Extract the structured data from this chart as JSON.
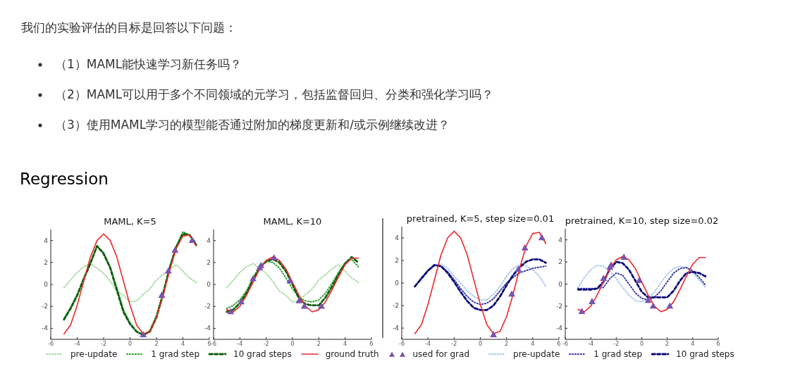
{
  "chart_data": [
    {
      "type": "line",
      "title": "MAML, K=5",
      "annotations": [
        "我们的实验评估的目标是回答以下问题：",
        "（1）MAML能快速学习新任务吗？",
        "（2）MAML可以用于多个不同领域的元学习，包括监督回归、分类和强化学习吗？",
        "（3）使用MAML学习的模型能否通过附加的梯度更新和/或示例继续改进？",
        "Regression"
      ],
      "x": [
        -5,
        -4.5,
        -4,
        -3.5,
        -3,
        -2.5,
        -2,
        -1.5,
        -1,
        -0.5,
        0,
        0.5,
        1,
        1.5,
        2,
        2.5,
        3,
        3.5,
        4,
        4.5,
        5
      ],
      "xlim": [
        -6,
        6
      ],
      "xticks": [
        -6,
        -4,
        -2,
        0,
        2,
        4,
        6
      ],
      "ylim": [
        -5,
        5
      ],
      "yticks": [
        -4,
        -2,
        0,
        2,
        4
      ],
      "legend": "bottom",
      "series": [
        {
          "name": "pre-update",
          "color": "#a6dba0",
          "line_style": "dotted",
          "values": [
            -0.3,
            0.4,
            1.1,
            1.6,
            1.9,
            1.5,
            1.0,
            0.3,
            -0.6,
            -1.0,
            -1.6,
            -1.5,
            -0.9,
            -0.4,
            0.4,
            0.9,
            1.4,
            1.8,
            1.2,
            0.6,
            0.2
          ]
        },
        {
          "name": "1 grad step",
          "color": "#2ca02c",
          "line_style": "dotted",
          "values": [
            -3.1,
            -2.1,
            -0.9,
            0.6,
            2.0,
            3.5,
            2.9,
            1.6,
            -0.3,
            -2.3,
            -3.5,
            -4.3,
            -4.6,
            -4.2,
            -2.8,
            -0.7,
            1.6,
            3.5,
            4.8,
            4.5,
            3.8
          ]
        },
        {
          "name": "10 grad steps",
          "color": "#0b5d0b",
          "line_style": "dashed",
          "values": [
            -3.2,
            -2.2,
            -1.0,
            0.5,
            1.9,
            3.5,
            2.8,
            1.5,
            -0.5,
            -2.5,
            -3.6,
            -4.3,
            -4.6,
            -4.3,
            -3.0,
            -0.9,
            1.5,
            3.4,
            4.6,
            4.5,
            3.6
          ]
        },
        {
          "name": "ground truth",
          "color": "#e8292b",
          "line_style": "solid",
          "values": [
            -4.5,
            -3.7,
            -1.9,
            0.3,
            2.5,
            4.0,
            4.6,
            4.0,
            2.5,
            0.3,
            -1.9,
            -3.7,
            -4.5,
            -4.3,
            -3.0,
            -1.0,
            1.3,
            3.3,
            4.4,
            4.5,
            3.5
          ]
        },
        {
          "name": "used for grad",
          "type": "scatter",
          "marker": "triangle",
          "color": "#7b52ae",
          "x": [
            1.0,
            2.4,
            2.9,
            3.4,
            4.7
          ],
          "values": [
            -4.6,
            -1.0,
            1.2,
            3.1,
            4.0
          ]
        }
      ]
    },
    {
      "type": "line",
      "title": "MAML, K=10",
      "x": [
        -5,
        -4.5,
        -4,
        -3.5,
        -3,
        -2.5,
        -2,
        -1.5,
        -1,
        -0.5,
        0,
        0.5,
        1,
        1.5,
        2,
        2.5,
        3,
        3.5,
        4,
        4.5,
        5
      ],
      "xlim": [
        -6,
        6
      ],
      "xticks": [
        -6,
        -4,
        -2,
        0,
        2,
        4,
        6
      ],
      "ylim": [
        -5,
        5
      ],
      "yticks": [
        -4,
        -2,
        0,
        2,
        4
      ],
      "series": [
        {
          "color": "#a6dba0",
          "line_style": "dotted",
          "values": [
            -0.3,
            0.4,
            1.1,
            1.6,
            1.9,
            1.5,
            1.0,
            0.3,
            -0.6,
            -1.0,
            -1.6,
            -1.5,
            -0.9,
            -0.4,
            0.4,
            0.9,
            1.4,
            1.8,
            1.2,
            0.6,
            0.2
          ]
        },
        {
          "color": "#2ca02c",
          "line_style": "dotted",
          "values": [
            -2.2,
            -1.9,
            -1.4,
            -0.6,
            0.6,
            1.7,
            2.1,
            2.0,
            1.5,
            0.6,
            -0.4,
            -1.2,
            -1.5,
            -1.6,
            -1.4,
            -0.8,
            0.1,
            1.1,
            2.0,
            2.3,
            1.6
          ]
        },
        {
          "color": "#0b5d0b",
          "line_style": "dashed",
          "values": [
            -2.5,
            -2.3,
            -1.7,
            -0.8,
            0.4,
            1.5,
            2.1,
            2.3,
            2.0,
            1.2,
            0.0,
            -1.3,
            -1.8,
            -1.9,
            -1.9,
            -1.2,
            -0.2,
            0.9,
            1.9,
            2.5,
            2.0
          ]
        },
        {
          "color": "#e8292b",
          "line_style": "solid",
          "values": [
            -2.3,
            -2.5,
            -2.0,
            -1.0,
            0.2,
            1.4,
            2.2,
            2.5,
            2.2,
            1.4,
            0.2,
            -1.0,
            -2.0,
            -2.5,
            -2.3,
            -1.6,
            -0.5,
            0.7,
            1.8,
            2.4,
            2.4
          ]
        },
        {
          "type": "scatter",
          "marker": "triangle",
          "color": "#7b52ae",
          "x": [
            -4.7,
            -3.9,
            -3.0,
            -2.5,
            -2.4,
            -1.4,
            -0.2,
            0.5,
            0.9,
            2.2
          ],
          "values": [
            -2.5,
            -1.6,
            0.5,
            1.5,
            1.7,
            2.4,
            0.3,
            -1.5,
            -2.0,
            -2.0
          ]
        }
      ]
    },
    {
      "type": "line",
      "title": "pretrained, K=5, step size=0.01",
      "x": [
        -5,
        -4.5,
        -4,
        -3.5,
        -3,
        -2.5,
        -2,
        -1.5,
        -1,
        -0.5,
        0,
        0.5,
        1,
        1.5,
        2,
        2.5,
        3,
        3.5,
        4,
        4.5,
        5
      ],
      "xlim": [
        -6,
        6
      ],
      "xticks": [
        -6,
        -4,
        -2,
        0,
        2,
        4,
        6
      ],
      "ylim": [
        -5,
        5
      ],
      "yticks": [
        -4,
        -2,
        0,
        2,
        4
      ],
      "legend": "bottom",
      "series": [
        {
          "name": "pre-update",
          "color": "#a9c9f2",
          "line_style": "dotted",
          "values": [
            -0.3,
            0.5,
            1.1,
            1.5,
            1.7,
            1.3,
            0.6,
            0.0,
            -0.7,
            -1.2,
            -1.5,
            -1.5,
            -1.0,
            -0.3,
            0.6,
            1.3,
            1.6,
            1.5,
            1.2,
            0.6,
            -0.3
          ]
        },
        {
          "name": "1 grad step",
          "color": "#3a3aa8",
          "line_style": "dotted",
          "values": [
            -0.3,
            0.4,
            1.1,
            1.6,
            1.5,
            1.0,
            0.3,
            -0.5,
            -1.2,
            -1.7,
            -1.9,
            -1.8,
            -1.4,
            -0.7,
            0.0,
            0.5,
            0.9,
            1.1,
            1.3,
            1.4,
            1.5
          ]
        },
        {
          "name": "10 grad steps",
          "color": "#0a0a78",
          "line_style": "dashed",
          "values": [
            -0.3,
            0.4,
            1.1,
            1.6,
            1.5,
            0.9,
            0.1,
            -0.8,
            -1.6,
            -2.2,
            -2.4,
            -2.4,
            -2.0,
            -1.2,
            -0.2,
            0.7,
            1.4,
            1.9,
            2.1,
            2.1,
            1.8
          ]
        },
        {
          "color": "#e8292b",
          "line_style": "solid",
          "values": [
            -4.5,
            -3.7,
            -1.9,
            0.3,
            2.5,
            4.0,
            4.6,
            4.0,
            2.5,
            0.3,
            -1.9,
            -3.7,
            -4.5,
            -4.3,
            -3.0,
            -1.0,
            1.3,
            3.3,
            4.4,
            4.5,
            3.5
          ]
        },
        {
          "type": "scatter",
          "marker": "triangle",
          "color": "#7b52ae",
          "x": [
            1.0,
            2.4,
            2.9,
            3.4,
            4.7
          ],
          "values": [
            -4.6,
            -1.0,
            1.2,
            3.1,
            4.0
          ]
        }
      ]
    },
    {
      "type": "line",
      "title": "pretrained, K=10, step size=0.02",
      "x": [
        -5,
        -4.5,
        -4,
        -3.5,
        -3,
        -2.5,
        -2,
        -1.5,
        -1,
        -0.5,
        0,
        0.5,
        1,
        1.5,
        2,
        2.5,
        3,
        3.5,
        4,
        4.5,
        5
      ],
      "xlim": [
        -6,
        6
      ],
      "xticks": [
        -6,
        -4,
        -2,
        0,
        2,
        4,
        6
      ],
      "ylim": [
        -5,
        5
      ],
      "yticks": [
        -4,
        -2,
        0,
        2,
        4
      ],
      "series": [
        {
          "color": "#a9c9f2",
          "line_style": "dotted",
          "values": [
            -0.3,
            0.6,
            1.3,
            1.7,
            1.6,
            1.2,
            0.5,
            -0.3,
            -1.0,
            -1.5,
            -1.6,
            -1.3,
            -0.7,
            0.1,
            0.9,
            1.4,
            1.6,
            1.5,
            1.0,
            0.4,
            -0.3
          ]
        },
        {
          "color": "#3a3aa8",
          "line_style": "dotted",
          "values": [
            -0.4,
            -0.4,
            -0.4,
            -0.4,
            -0.3,
            0.5,
            1.0,
            0.8,
            0.0,
            -0.8,
            -1.3,
            -1.4,
            -1.2,
            -0.6,
            0.2,
            1.0,
            1.4,
            1.5,
            1.2,
            0.6,
            -0.1
          ]
        },
        {
          "color": "#0a0a78",
          "line_style": "dashed",
          "values": [
            -0.5,
            -0.5,
            -0.5,
            -0.4,
            0.2,
            1.4,
            2.0,
            1.9,
            1.3,
            0.3,
            -0.7,
            -1.2,
            -1.2,
            -1.2,
            -1.2,
            -0.6,
            0.3,
            1.0,
            1.1,
            1.0,
            0.7
          ]
        },
        {
          "color": "#e8292b",
          "line_style": "solid",
          "values": [
            -2.3,
            -2.5,
            -2.0,
            -1.0,
            0.2,
            1.4,
            2.2,
            2.5,
            2.2,
            1.4,
            0.2,
            -1.0,
            -2.0,
            -2.5,
            -2.3,
            -1.6,
            -0.5,
            0.7,
            1.8,
            2.4,
            2.4
          ]
        },
        {
          "type": "scatter",
          "marker": "triangle",
          "color": "#7b52ae",
          "x": [
            -4.7,
            -3.9,
            -3.0,
            -2.5,
            -2.4,
            -1.4,
            -0.2,
            0.5,
            0.9,
            2.2
          ],
          "values": [
            -2.5,
            -1.6,
            0.5,
            1.5,
            1.7,
            2.4,
            0.3,
            -1.5,
            -2.0,
            -2.0
          ]
        }
      ]
    }
  ]
}
